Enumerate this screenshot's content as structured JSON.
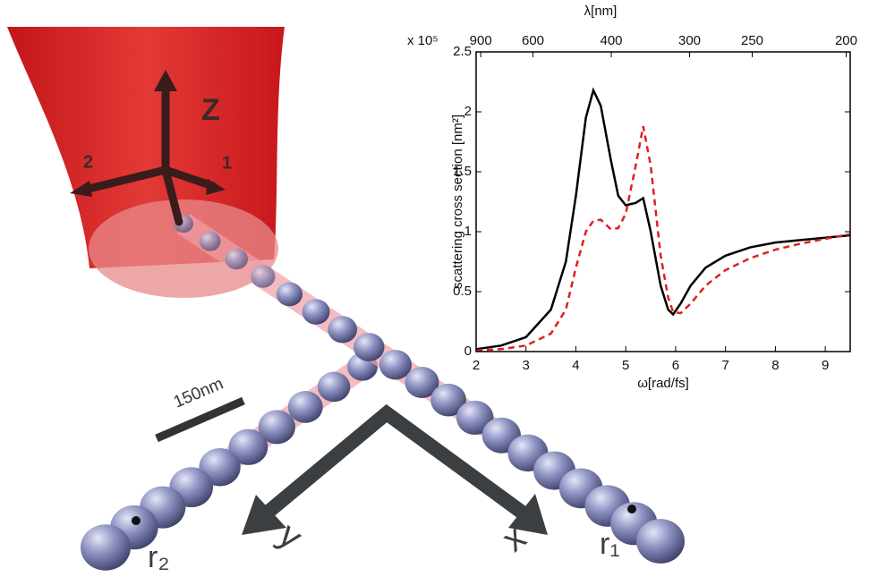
{
  "chart_data": {
    "type": "line",
    "xlabel": "ω[rad/fs]",
    "x2label": "λ[nm]",
    "ylabel": "scattering cross section [nm²]",
    "y_multiplier": "x 10⁵",
    "x": [
      2,
      2.5,
      3,
      3.5,
      3.8,
      4.0,
      4.2,
      4.35,
      4.5,
      4.7,
      4.85,
      5.0,
      5.2,
      5.35,
      5.5,
      5.7,
      5.85,
      5.95,
      6.1,
      6.3,
      6.6,
      7,
      7.5,
      8,
      8.5,
      9,
      9.5
    ],
    "series": [
      {
        "color": "#000000",
        "style": "solid",
        "values": [
          0.02,
          0.05,
          0.12,
          0.35,
          0.75,
          1.3,
          1.95,
          2.18,
          2.05,
          1.6,
          1.3,
          1.22,
          1.24,
          1.28,
          1.0,
          0.55,
          0.35,
          0.31,
          0.4,
          0.55,
          0.7,
          0.8,
          0.87,
          0.91,
          0.93,
          0.95,
          0.97
        ]
      },
      {
        "color": "#e0201c",
        "style": "dashed",
        "values": [
          0.01,
          0.02,
          0.05,
          0.15,
          0.35,
          0.7,
          1.0,
          1.09,
          1.1,
          1.02,
          1.03,
          1.15,
          1.55,
          1.88,
          1.55,
          0.8,
          0.45,
          0.33,
          0.32,
          0.4,
          0.55,
          0.68,
          0.78,
          0.85,
          0.9,
          0.94,
          0.98
        ]
      }
    ],
    "xlim": [
      2,
      9.5
    ],
    "xticks": [
      2,
      3,
      4,
      5,
      6,
      7,
      8,
      9
    ],
    "x2lim": [
      942,
      198.3
    ],
    "x2scale": "reciprocal",
    "x2ticks": [
      900,
      600,
      400,
      300,
      250,
      200
    ],
    "ylim": [
      0,
      2.5
    ],
    "yticks": [
      0,
      0.5,
      1,
      1.5,
      2,
      2.5
    ]
  },
  "illustration": {
    "axis_labels": [
      "Z",
      "1",
      "2"
    ],
    "scale_bar": "150nm",
    "direction_labels": [
      "y",
      "x"
    ],
    "endpoints": [
      "r₂",
      "r₁"
    ]
  }
}
